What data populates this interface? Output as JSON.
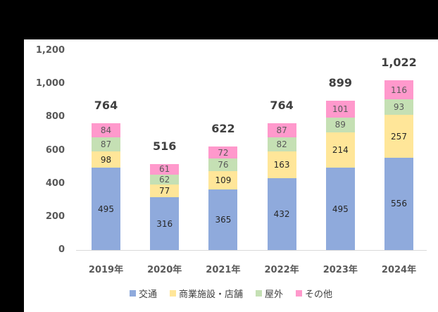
{
  "chart_data": {
    "type": "bar",
    "stacked": true,
    "title": "",
    "xlabel": "",
    "ylabel": "",
    "ylim": [
      0,
      1200
    ],
    "yticks": [
      "0",
      "200",
      "400",
      "600",
      "800",
      "1,000",
      "1,200"
    ],
    "grid": false,
    "legend_position": "bottom",
    "categories": [
      "2019年",
      "2020年",
      "2021年",
      "2022年",
      "2023年",
      "2024年"
    ],
    "series": [
      {
        "name": "交通",
        "color": "#8FAADC",
        "values": [
          495,
          316,
          365,
          432,
          495,
          556
        ]
      },
      {
        "name": "商業施設・店舗",
        "color": "#FFE699",
        "values": [
          98,
          77,
          109,
          163,
          214,
          257
        ]
      },
      {
        "name": "屋外",
        "color": "#C5E0B4",
        "values": [
          87,
          62,
          76,
          82,
          89,
          93
        ]
      },
      {
        "name": "その他",
        "color": "#FF99CC",
        "values": [
          84,
          61,
          72,
          87,
          101,
          116
        ]
      }
    ],
    "totals": [
      "764",
      "516",
      "622",
      "764",
      "899",
      "1,022"
    ]
  }
}
